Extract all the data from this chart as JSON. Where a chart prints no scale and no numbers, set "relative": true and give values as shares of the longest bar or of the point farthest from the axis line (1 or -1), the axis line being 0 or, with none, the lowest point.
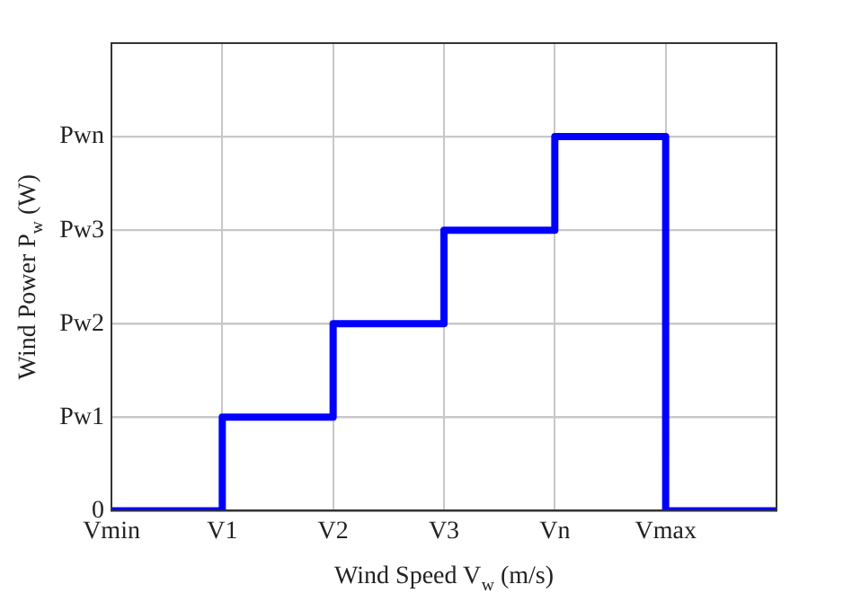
{
  "chart_data": {
    "type": "step",
    "relative": true,
    "xlabel": "Wind Speed V$_{w}$ (m/s)",
    "ylabel": "Wind Power P$_{w}$ (W)",
    "categories": [
      "Vmin",
      "V1",
      "V2",
      "V3",
      "Vn",
      "Vmax",
      null
    ],
    "series": [
      {
        "color": "#0000ff",
        "values": [
          0,
          0.25,
          0.5,
          0.75,
          1,
          0,
          0
        ]
      }
    ],
    "annotations": [
      "0"
    ],
    "ref_lines": [
      {
        "axis": "y",
        "value": 0.25,
        "label": "Pw1",
        "color": "#c8c8c8"
      },
      {
        "axis": "y",
        "value": 0.5,
        "label": "Pw2",
        "color": "#c8c8c8"
      },
      {
        "axis": "y",
        "value": 0.75,
        "label": "Pw3",
        "color": "#c8c8c8"
      },
      {
        "axis": "y",
        "value": 1,
        "label": "Pwn",
        "color": "#c8c8c8"
      }
    ],
    "grid": "x",
    "legend": false,
    "marker": "none",
    "line_style": "solid"
  }
}
